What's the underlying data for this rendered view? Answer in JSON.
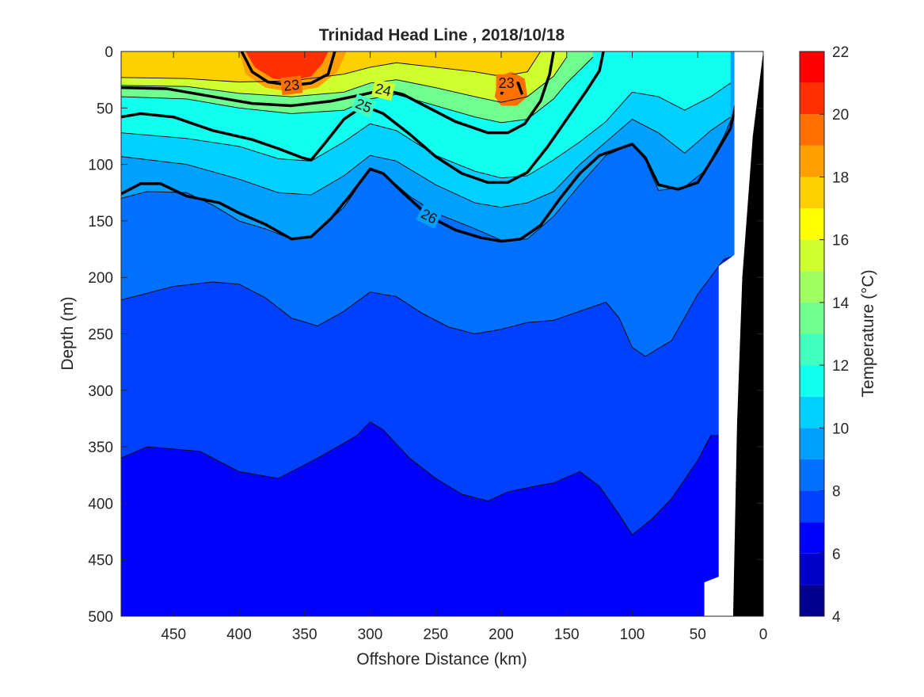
{
  "chart_data": {
    "type": "heatmap",
    "title": "Trinidad Head Line , 2018/10/18",
    "xlabel": "Offshore Distance (km)",
    "ylabel": "Depth (m)",
    "xlim": [
      490,
      0
    ],
    "ylim": [
      500,
      0
    ],
    "x_reversed": true,
    "y_reversed": true,
    "x_ticks": [
      450,
      400,
      350,
      300,
      250,
      200,
      150,
      100,
      50,
      0
    ],
    "y_ticks": [
      0,
      50,
      100,
      150,
      200,
      250,
      300,
      350,
      400,
      450,
      500
    ],
    "colorbar": {
      "label": "Temperature (°C)",
      "range": [
        4,
        22
      ],
      "ticks": [
        4,
        6,
        8,
        10,
        12,
        14,
        16,
        18,
        20,
        22
      ],
      "levels": [
        4,
        5,
        6,
        7,
        8,
        9,
        10,
        11,
        12,
        13,
        14,
        15,
        16,
        17,
        18,
        19,
        20,
        21,
        22
      ],
      "colors": [
        "#00008f",
        "#0000c8",
        "#0000ff",
        "#0040ff",
        "#0070ff",
        "#00a0ff",
        "#00d0ff",
        "#10ffef",
        "#40ffbf",
        "#70ff8f",
        "#a0ff60",
        "#d0ff30",
        "#ffff00",
        "#ffd000",
        "#ffa000",
        "#ff7000",
        "#ff3000",
        "#ff0000",
        "#c00000"
      ]
    },
    "temperature_isotherms": [
      {
        "value": 17,
        "points": [
          [
            490,
            23
          ],
          [
            440,
            24
          ],
          [
            400,
            27
          ],
          [
            360,
            26
          ],
          [
            320,
            20
          ],
          [
            300,
            14
          ],
          [
            280,
            10
          ],
          [
            250,
            14
          ],
          [
            220,
            18
          ],
          [
            200,
            22
          ],
          [
            180,
            18
          ],
          [
            170,
            0
          ]
        ]
      },
      {
        "value": 15,
        "points": [
          [
            490,
            30
          ],
          [
            440,
            31
          ],
          [
            400,
            37
          ],
          [
            360,
            40
          ],
          [
            320,
            36
          ],
          [
            300,
            28
          ],
          [
            280,
            25
          ],
          [
            250,
            32
          ],
          [
            220,
            40
          ],
          [
            200,
            45
          ],
          [
            180,
            40
          ],
          [
            160,
            22
          ],
          [
            150,
            5
          ]
        ]
      },
      {
        "value": 13,
        "points": [
          [
            490,
            40
          ],
          [
            440,
            42
          ],
          [
            400,
            50
          ],
          [
            360,
            55
          ],
          [
            320,
            52
          ],
          [
            300,
            42
          ],
          [
            280,
            38
          ],
          [
            250,
            48
          ],
          [
            220,
            58
          ],
          [
            200,
            63
          ],
          [
            180,
            60
          ],
          [
            160,
            42
          ],
          [
            150,
            28
          ],
          [
            130,
            5
          ]
        ]
      },
      {
        "value": 11,
        "points": [
          [
            490,
            72
          ],
          [
            440,
            77
          ],
          [
            400,
            84
          ],
          [
            370,
            95
          ],
          [
            345,
            97
          ],
          [
            320,
            80
          ],
          [
            300,
            64
          ],
          [
            280,
            70
          ],
          [
            250,
            92
          ],
          [
            220,
            106
          ],
          [
            200,
            112
          ],
          [
            180,
            110
          ],
          [
            160,
            96
          ],
          [
            140,
            80
          ],
          [
            120,
            62
          ],
          [
            100,
            36
          ],
          [
            80,
            40
          ],
          [
            60,
            52
          ],
          [
            40,
            40
          ],
          [
            25,
            28
          ]
        ]
      },
      {
        "value": 10,
        "points": [
          [
            490,
            93
          ],
          [
            440,
            100
          ],
          [
            400,
            113
          ],
          [
            370,
            125
          ],
          [
            345,
            127
          ],
          [
            320,
            110
          ],
          [
            300,
            92
          ],
          [
            280,
            97
          ],
          [
            250,
            118
          ],
          [
            220,
            134
          ],
          [
            200,
            138
          ],
          [
            180,
            134
          ],
          [
            160,
            124
          ],
          [
            140,
            100
          ],
          [
            120,
            80
          ],
          [
            100,
            60
          ],
          [
            80,
            72
          ],
          [
            60,
            90
          ],
          [
            40,
            70
          ],
          [
            25,
            58
          ]
        ]
      },
      {
        "value": 9,
        "points": [
          [
            490,
            130
          ],
          [
            470,
            124
          ],
          [
            440,
            125
          ],
          [
            420,
            136
          ],
          [
            400,
            150
          ],
          [
            380,
            157
          ],
          [
            360,
            166
          ],
          [
            345,
            164
          ],
          [
            320,
            138
          ],
          [
            300,
            104
          ],
          [
            290,
            108
          ],
          [
            270,
            128
          ],
          [
            250,
            143
          ],
          [
            220,
            157
          ],
          [
            200,
            167
          ],
          [
            180,
            166
          ],
          [
            160,
            146
          ],
          [
            140,
            118
          ],
          [
            120,
            92
          ],
          [
            100,
            82
          ],
          [
            90,
            96
          ],
          [
            80,
            123
          ],
          [
            60,
            120
          ],
          [
            45,
            106
          ],
          [
            30,
            75
          ],
          [
            20,
            48
          ]
        ]
      },
      {
        "value": 8,
        "points": [
          [
            490,
            220
          ],
          [
            450,
            208
          ],
          [
            420,
            204
          ],
          [
            400,
            206
          ],
          [
            380,
            218
          ],
          [
            360,
            236
          ],
          [
            340,
            243
          ],
          [
            320,
            230
          ],
          [
            300,
            213
          ],
          [
            280,
            217
          ],
          [
            260,
            232
          ],
          [
            240,
            244
          ],
          [
            220,
            250
          ],
          [
            200,
            246
          ],
          [
            180,
            240
          ],
          [
            160,
            238
          ],
          [
            140,
            230
          ],
          [
            120,
            222
          ],
          [
            110,
            236
          ],
          [
            100,
            262
          ],
          [
            90,
            270
          ],
          [
            70,
            256
          ],
          [
            50,
            215
          ],
          [
            30,
            184
          ],
          [
            20,
            180
          ]
        ]
      },
      {
        "value": 7,
        "points": [
          [
            490,
            360
          ],
          [
            470,
            350
          ],
          [
            430,
            354
          ],
          [
            400,
            372
          ],
          [
            370,
            378
          ],
          [
            340,
            360
          ],
          [
            310,
            340
          ],
          [
            300,
            328
          ],
          [
            290,
            335
          ],
          [
            270,
            360
          ],
          [
            250,
            378
          ],
          [
            230,
            392
          ],
          [
            210,
            398
          ],
          [
            195,
            390
          ],
          [
            175,
            385
          ],
          [
            160,
            382
          ],
          [
            140,
            372
          ],
          [
            125,
            385
          ],
          [
            110,
            410
          ],
          [
            100,
            428
          ],
          [
            85,
            414
          ],
          [
            70,
            396
          ],
          [
            50,
            362
          ],
          [
            40,
            340
          ],
          [
            30,
            340
          ]
        ]
      }
    ],
    "sigma_theta_contours": [
      {
        "label": "23",
        "points": [
          [
            398,
            0
          ],
          [
            390,
            18
          ],
          [
            378,
            27
          ],
          [
            360,
            30
          ],
          [
            345,
            28
          ],
          [
            332,
            20
          ],
          [
            327,
            0
          ]
        ]
      },
      {
        "label": "23",
        "points": [
          [
            200,
            38
          ],
          [
            196,
            28
          ],
          [
            187,
            28
          ],
          [
            184,
            38
          ]
        ]
      },
      {
        "label": "24",
        "points": [
          [
            490,
            32
          ],
          [
            455,
            33
          ],
          [
            420,
            40
          ],
          [
            390,
            46
          ],
          [
            360,
            48
          ],
          [
            330,
            44
          ],
          [
            305,
            38
          ],
          [
            290,
            34
          ],
          [
            275,
            38
          ],
          [
            255,
            50
          ],
          [
            235,
            62
          ],
          [
            210,
            72
          ],
          [
            195,
            72
          ],
          [
            182,
            64
          ],
          [
            170,
            44
          ],
          [
            163,
            20
          ],
          [
            160,
            0
          ]
        ]
      },
      {
        "label": "25",
        "points": [
          [
            490,
            58
          ],
          [
            475,
            55
          ],
          [
            450,
            58
          ],
          [
            420,
            70
          ],
          [
            390,
            78
          ],
          [
            370,
            86
          ],
          [
            352,
            94
          ],
          [
            345,
            96
          ],
          [
            335,
            82
          ],
          [
            320,
            60
          ],
          [
            305,
            48
          ],
          [
            290,
            55
          ],
          [
            270,
            73
          ],
          [
            250,
            93
          ],
          [
            230,
            108
          ],
          [
            210,
            116
          ],
          [
            195,
            116
          ],
          [
            180,
            107
          ],
          [
            165,
            85
          ],
          [
            150,
            60
          ],
          [
            135,
            35
          ],
          [
            125,
            17
          ],
          [
            122,
            0
          ]
        ]
      },
      {
        "label": "26",
        "points": [
          [
            490,
            126
          ],
          [
            475,
            117
          ],
          [
            460,
            117
          ],
          [
            440,
            128
          ],
          [
            415,
            134
          ],
          [
            400,
            143
          ],
          [
            380,
            153
          ],
          [
            360,
            166
          ],
          [
            345,
            164
          ],
          [
            330,
            148
          ],
          [
            315,
            127
          ],
          [
            300,
            104
          ],
          [
            290,
            108
          ],
          [
            275,
            125
          ],
          [
            255,
            146
          ],
          [
            235,
            158
          ],
          [
            215,
            165
          ],
          [
            200,
            168
          ],
          [
            185,
            166
          ],
          [
            170,
            154
          ],
          [
            155,
            130
          ],
          [
            140,
            108
          ],
          [
            125,
            92
          ],
          [
            110,
            86
          ],
          [
            100,
            82
          ],
          [
            90,
            94
          ],
          [
            80,
            118
          ],
          [
            65,
            122
          ],
          [
            50,
            116
          ],
          [
            35,
            88
          ],
          [
            25,
            68
          ],
          [
            20,
            42
          ]
        ]
      }
    ],
    "coast": {
      "land_points": [
        [
          0,
          0
        ],
        [
          8,
          75
        ],
        [
          16,
          200
        ],
        [
          20,
          330
        ],
        [
          23,
          500
        ]
      ],
      "no_data_note": ""
    }
  }
}
